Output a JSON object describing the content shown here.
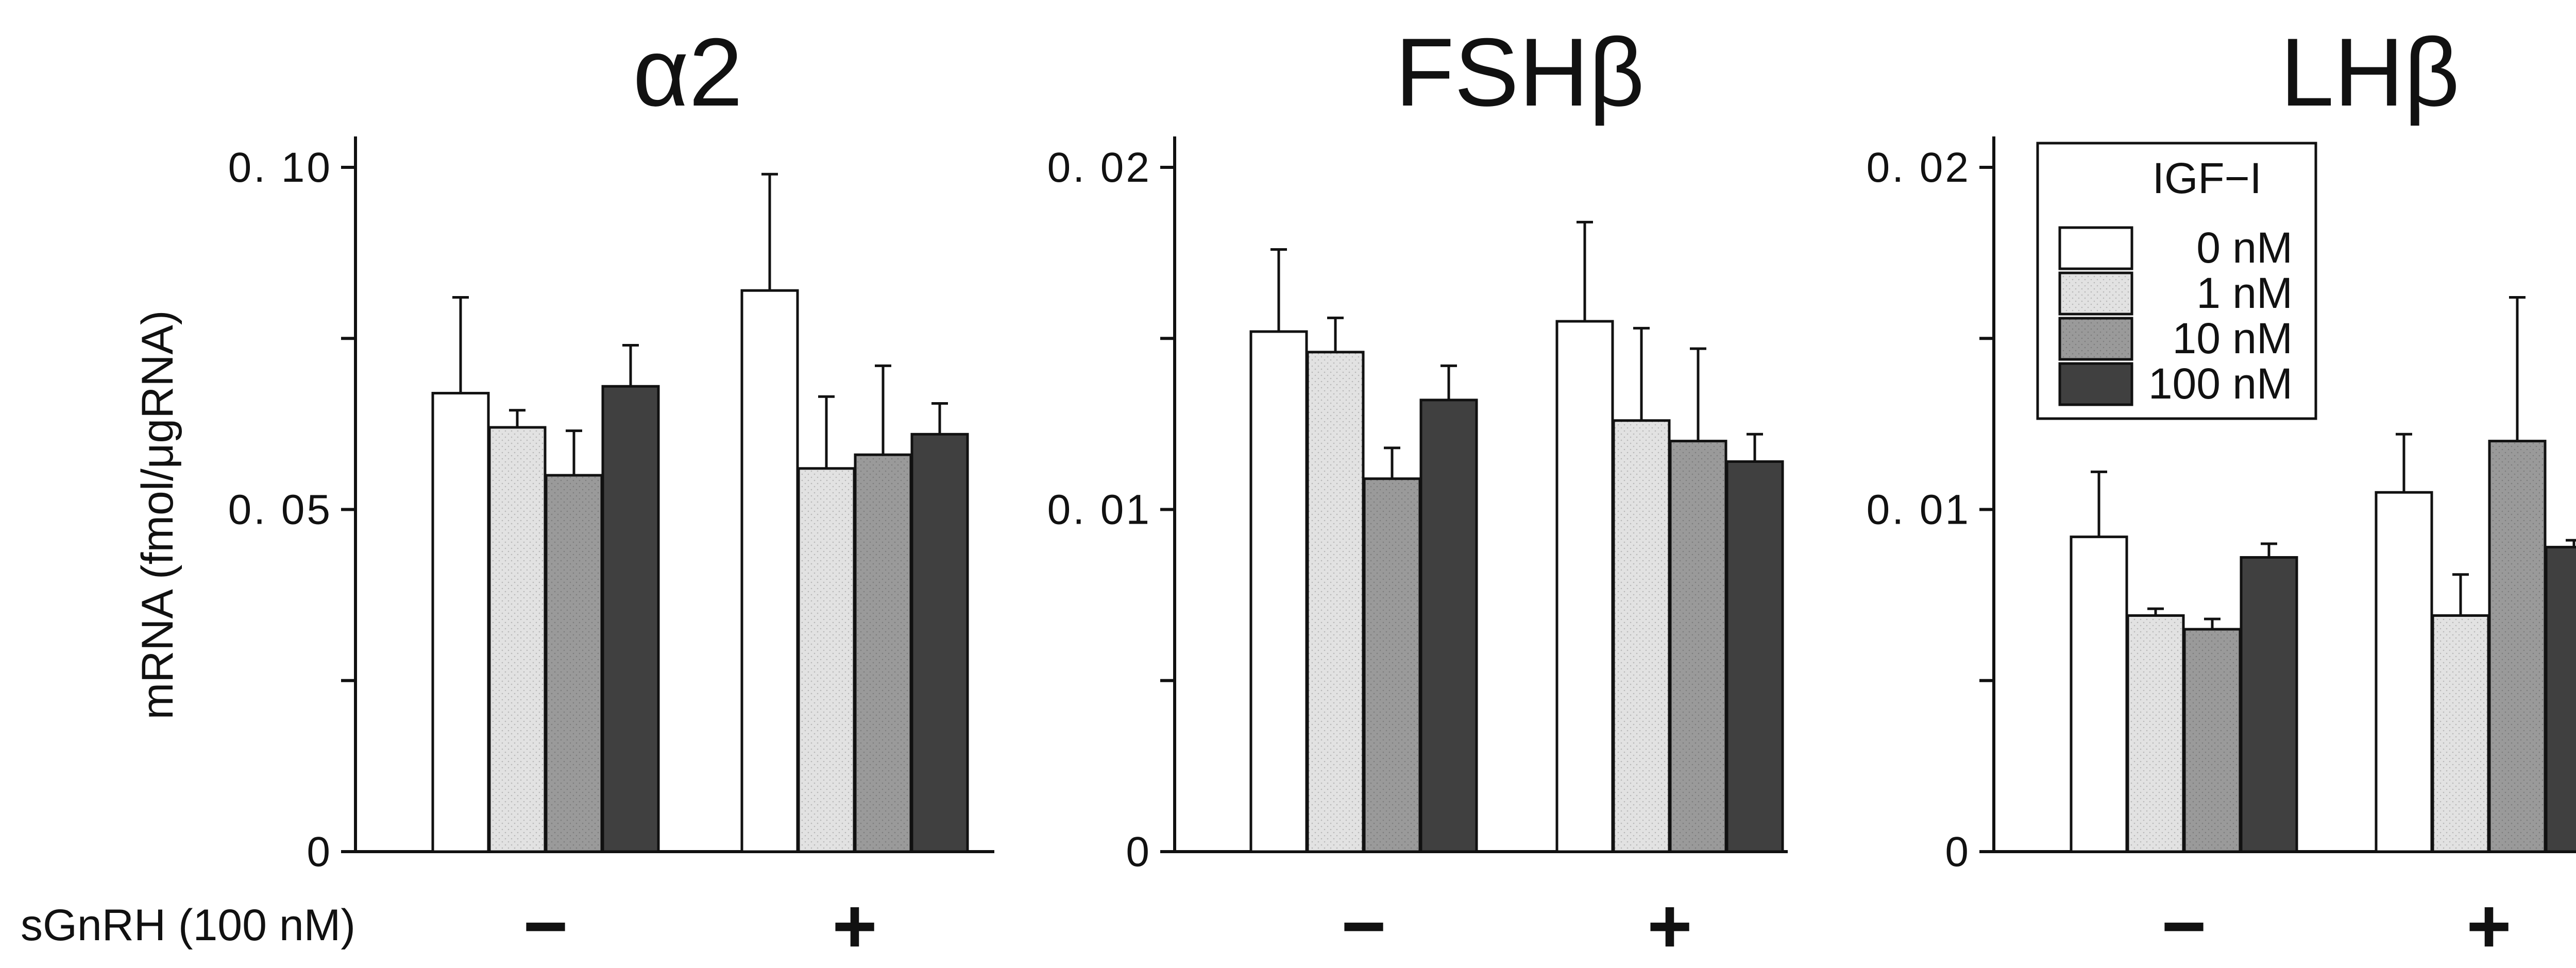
{
  "chart_data": [
    {
      "type": "bar",
      "title": "α2",
      "categories": [
        "−",
        "+"
      ],
      "ylabel": "mRNA (fmol/μgRNA)",
      "ylim": [
        0,
        0.1
      ],
      "yticks": [
        0,
        0.025,
        0.05,
        0.075,
        0.1
      ],
      "ytick_labels": [
        "0",
        "",
        "0. 05",
        "",
        "0. 10"
      ],
      "series": [
        {
          "values": [
            0.067,
            0.082
          ],
          "errors": [
            0.014,
            0.017
          ]
        },
        {
          "values": [
            0.062,
            0.056
          ],
          "errors": [
            0.0025,
            0.0105
          ]
        },
        {
          "values": [
            0.055,
            0.058
          ],
          "errors": [
            0.0065,
            0.013
          ]
        },
        {
          "values": [
            0.068,
            0.061
          ],
          "errors": [
            0.006,
            0.0045
          ]
        }
      ]
    },
    {
      "type": "bar",
      "title": "FSHβ",
      "categories": [
        "−",
        "+"
      ],
      "ylabel": "",
      "ylim": [
        0,
        0.02
      ],
      "yticks": [
        0,
        0.005,
        0.01,
        0.015,
        0.02
      ],
      "ytick_labels": [
        "0",
        "",
        "0. 01",
        "",
        "0. 02"
      ],
      "series": [
        {
          "values": [
            0.0152,
            0.0155
          ],
          "errors": [
            0.0024,
            0.0029
          ]
        },
        {
          "values": [
            0.0146,
            0.0126
          ],
          "errors": [
            0.001,
            0.0027
          ]
        },
        {
          "values": [
            0.0109,
            0.012
          ],
          "errors": [
            0.0009,
            0.0027
          ]
        },
        {
          "values": [
            0.0132,
            0.0114
          ],
          "errors": [
            0.001,
            0.0008
          ]
        }
      ]
    },
    {
      "type": "bar",
      "title": "LHβ",
      "categories": [
        "−",
        "+"
      ],
      "ylabel": "",
      "ylim": [
        0,
        0.02
      ],
      "yticks": [
        0,
        0.005,
        0.01,
        0.015,
        0.02
      ],
      "ytick_labels": [
        "0",
        "",
        "0. 01",
        "",
        "0. 02"
      ],
      "series": [
        {
          "values": [
            0.0092,
            0.0105
          ],
          "errors": [
            0.0019,
            0.0017
          ]
        },
        {
          "values": [
            0.0069,
            0.0069
          ],
          "errors": [
            0.0002,
            0.0012
          ]
        },
        {
          "values": [
            0.0065,
            0.012
          ],
          "errors": [
            0.0003,
            0.0042
          ]
        },
        {
          "values": [
            0.0086,
            0.0089
          ],
          "errors": [
            0.0004,
            0.0002
          ]
        }
      ],
      "legend": {
        "title": "IGF−I",
        "entries": [
          "0 nM",
          "1 nM",
          "10 nM",
          "100 nM"
        ],
        "placement": "top-right"
      }
    }
  ],
  "figure": {
    "condition_label": "sGnRH (100 nM)"
  },
  "colors": {
    "series": [
      "#ffffff",
      "#e2e2e2",
      "#9a9a9a",
      "#404040"
    ],
    "axis": "#111111"
  }
}
